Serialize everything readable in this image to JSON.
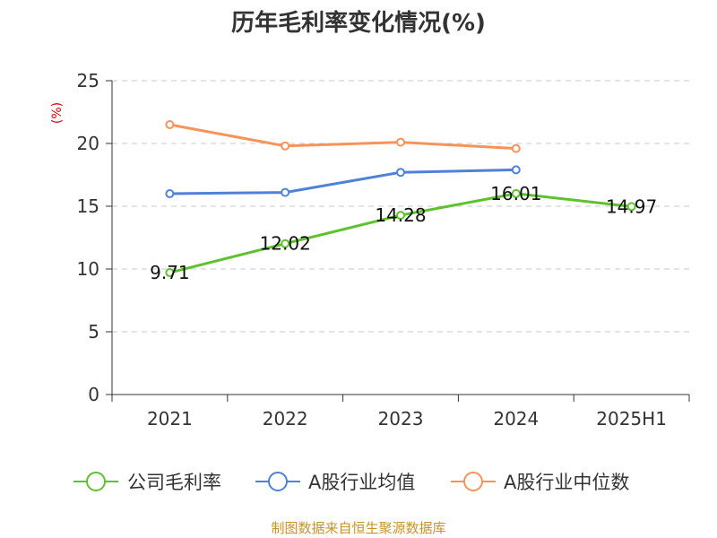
{
  "chart_data": {
    "type": "line",
    "title": "历年毛利率变化情况(%)",
    "unit_label": "(%)",
    "categories": [
      "2021",
      "2022",
      "2023",
      "2024",
      "2025H1"
    ],
    "ylim": [
      0,
      25
    ],
    "yticks": [
      0,
      5,
      10,
      15,
      20,
      25
    ],
    "grid": true,
    "legend_position": "bottom",
    "series": [
      {
        "name": "公司毛利率",
        "color": "#5ec22e",
        "values": [
          9.71,
          12.02,
          14.28,
          16.01,
          14.97
        ],
        "data_labels": [
          "9.71",
          "12.02",
          "14.28",
          "16.01",
          "14.97"
        ]
      },
      {
        "name": "A股行业均值",
        "color": "#4f81d8",
        "values": [
          16.0,
          16.1,
          17.7,
          17.9,
          null
        ]
      },
      {
        "name": "A股行业中位数",
        "color": "#f5935a",
        "values": [
          21.5,
          19.8,
          20.1,
          19.6,
          null
        ]
      }
    ]
  },
  "footer": {
    "text": "制图数据来自恒生聚源数据库",
    "color": "#c8922b"
  }
}
